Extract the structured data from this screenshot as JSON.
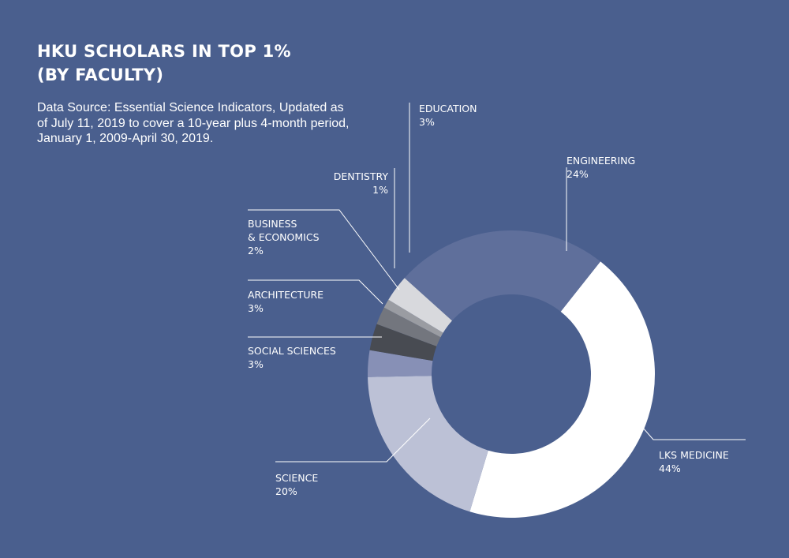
{
  "header": {
    "title_line1": "HKU SCHOLARS IN TOP 1%",
    "title_line2": "(BY FACULTY)",
    "source_text": "Data Source: Essential Science Indicators, Updated as of July 11, 2019 to cover a 10-year plus 4-month period, January 1, 2009-April 30, 2019."
  },
  "chart_data": {
    "type": "pie",
    "donut": true,
    "title": "HKU SCHOLARS IN TOP 1% (BY FACULTY)",
    "unit": "%",
    "slices": [
      {
        "label": "ENGINEERING",
        "value": 24,
        "value_label": "24%",
        "color": "#5f6f9b"
      },
      {
        "label": "LKS MEDICINE",
        "value": 44,
        "value_label": "44%",
        "color": "#ffffff"
      },
      {
        "label": "SCIENCE",
        "value": 20,
        "value_label": "20%",
        "color": "#bcc1d6"
      },
      {
        "label": "SOCIAL SCIENCES",
        "value": 3,
        "value_label": "3%",
        "color": "#8790b6"
      },
      {
        "label": "ARCHITECTURE",
        "value": 3,
        "value_label": "3%",
        "color": "#484b52"
      },
      {
        "label": "BUSINESS\n& ECONOMICS",
        "value": 2,
        "value_label": "2%",
        "color": "#73767e"
      },
      {
        "label": "DENTISTRY",
        "value": 1,
        "value_label": "1%",
        "color": "#9a9ca2"
      },
      {
        "label": "EDUCATION",
        "value": 3,
        "value_label": "3%",
        "color": "#d8d9dd"
      }
    ]
  }
}
